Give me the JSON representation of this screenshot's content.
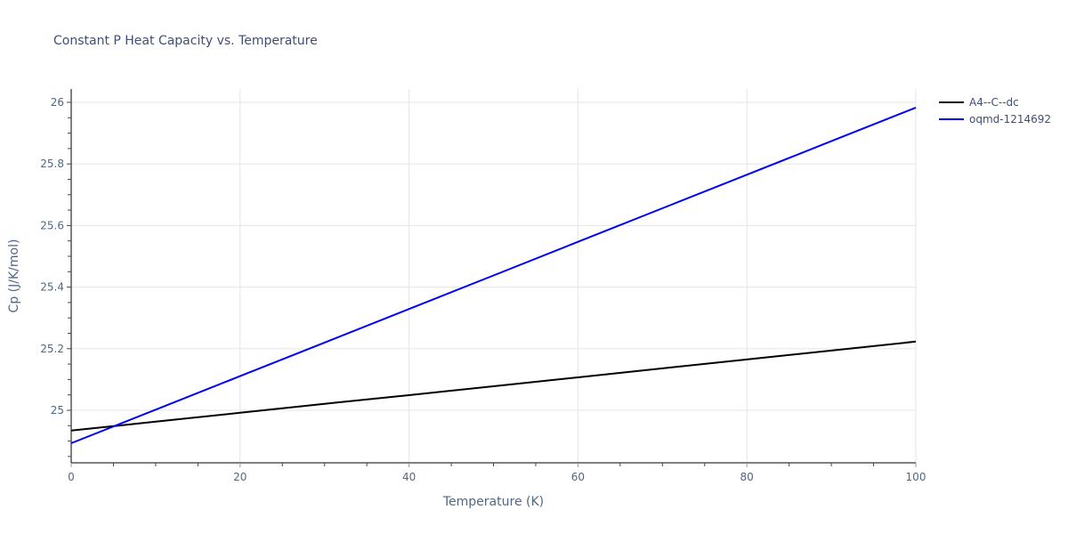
{
  "chart_data": {
    "type": "line",
    "title": "Constant P Heat Capacity vs. Temperature",
    "xlabel": "Temperature (K)",
    "ylabel": "Cp (J/K/mol)",
    "xlim": [
      0,
      100
    ],
    "ylim": [
      24.83,
      26.045
    ],
    "x_ticks": [
      0,
      20,
      40,
      60,
      80,
      100
    ],
    "y_ticks": [
      25,
      25.2,
      25.4,
      25.6,
      25.8,
      26
    ],
    "y_tick_labels": [
      "25",
      "25.2",
      "25.4",
      "25.6",
      "25.8",
      "26"
    ],
    "grid": true,
    "legend_position": "top-right outside",
    "x": [
      0,
      10,
      20,
      30,
      40,
      50,
      60,
      70,
      80,
      90,
      100
    ],
    "series": [
      {
        "name": "A4--C--dc",
        "color": "#000000",
        "values": [
          24.934,
          24.963,
          24.992,
          25.021,
          25.049,
          25.078,
          25.107,
          25.136,
          25.165,
          25.194,
          25.223
        ]
      },
      {
        "name": "oqmd-1214692",
        "color": "#0000ff",
        "values": [
          24.893,
          25.002,
          25.111,
          25.22,
          25.329,
          25.438,
          25.547,
          25.656,
          25.765,
          25.874,
          25.983
        ]
      }
    ]
  }
}
